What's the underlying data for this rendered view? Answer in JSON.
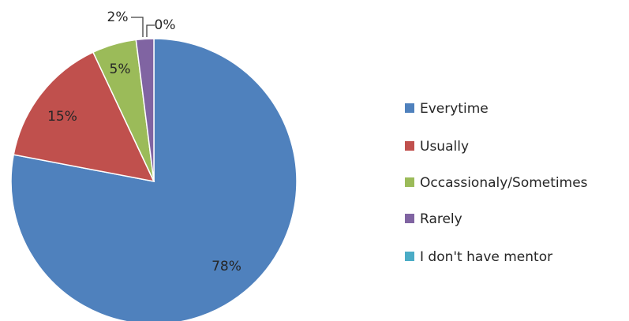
{
  "chart_data": {
    "type": "pie",
    "title": "",
    "categories": [
      "Everytime",
      "Usually",
      "Occassionaly/Sometimes",
      "Rarely",
      "I don't have mentor"
    ],
    "values": [
      78,
      15,
      5,
      2,
      0
    ],
    "data_labels": [
      "78%",
      "15%",
      "5%",
      "2%",
      "0%"
    ],
    "colors": [
      "#4f81bd",
      "#c0504d",
      "#9bbb59",
      "#8064a2",
      "#4bacc6"
    ],
    "legend_position": "right",
    "start_angle_deg": 0,
    "direction": "clockwise"
  }
}
